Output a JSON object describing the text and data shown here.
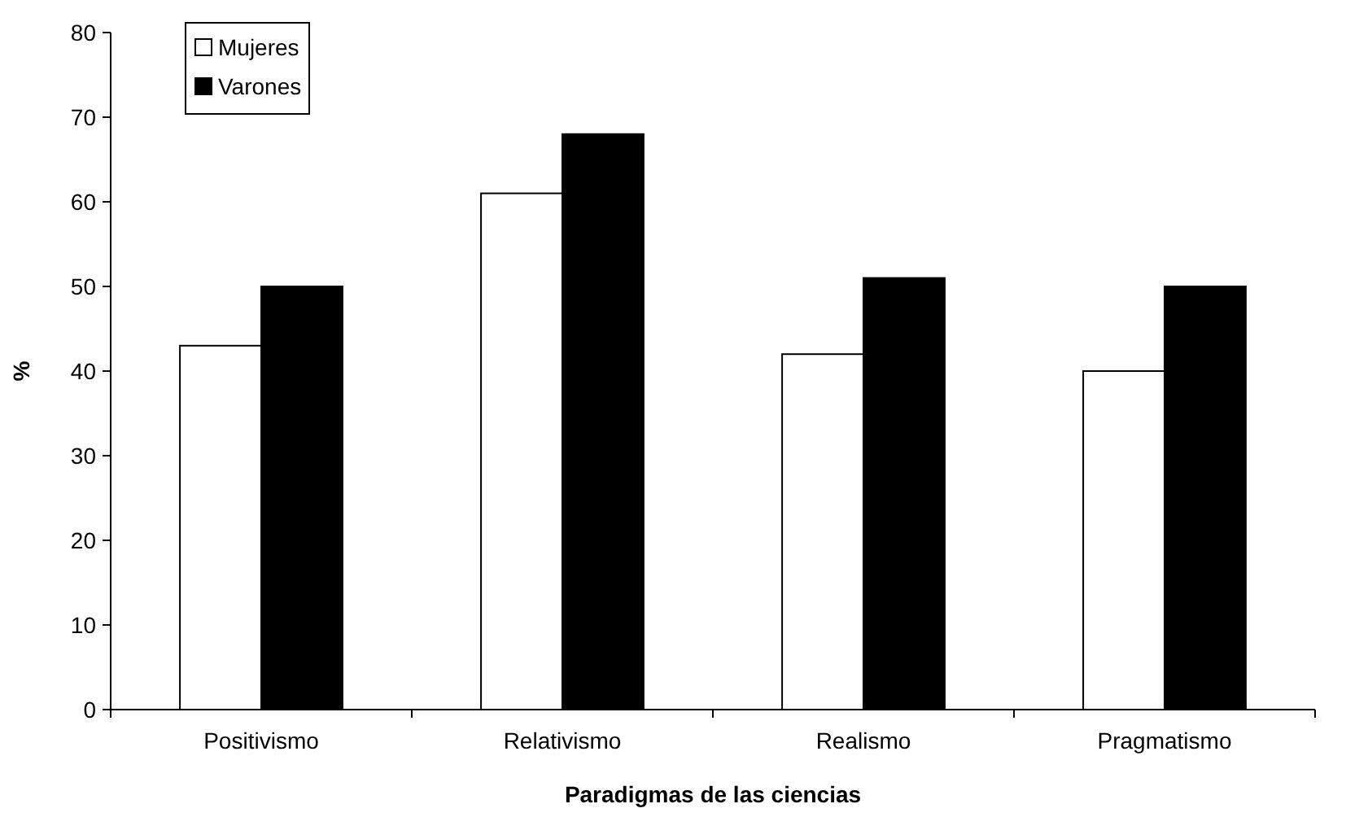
{
  "chart_data": {
    "type": "bar",
    "xlabel": "Paradigmas de las ciencias",
    "ylabel": "%",
    "categories": [
      "Positivismo",
      "Relativismo",
      "Realismo",
      "Pragmatismo"
    ],
    "series": [
      {
        "name": "Mujeres",
        "color": "#ffffff",
        "values": [
          43,
          61,
          42,
          40
        ]
      },
      {
        "name": "Varones",
        "color": "#000000",
        "values": [
          50,
          68,
          51,
          50
        ]
      }
    ],
    "ylim": [
      0,
      80
    ],
    "yticks": [
      0,
      10,
      20,
      30,
      40,
      50,
      60,
      70,
      80
    ],
    "grid": false,
    "legend": "top left"
  }
}
